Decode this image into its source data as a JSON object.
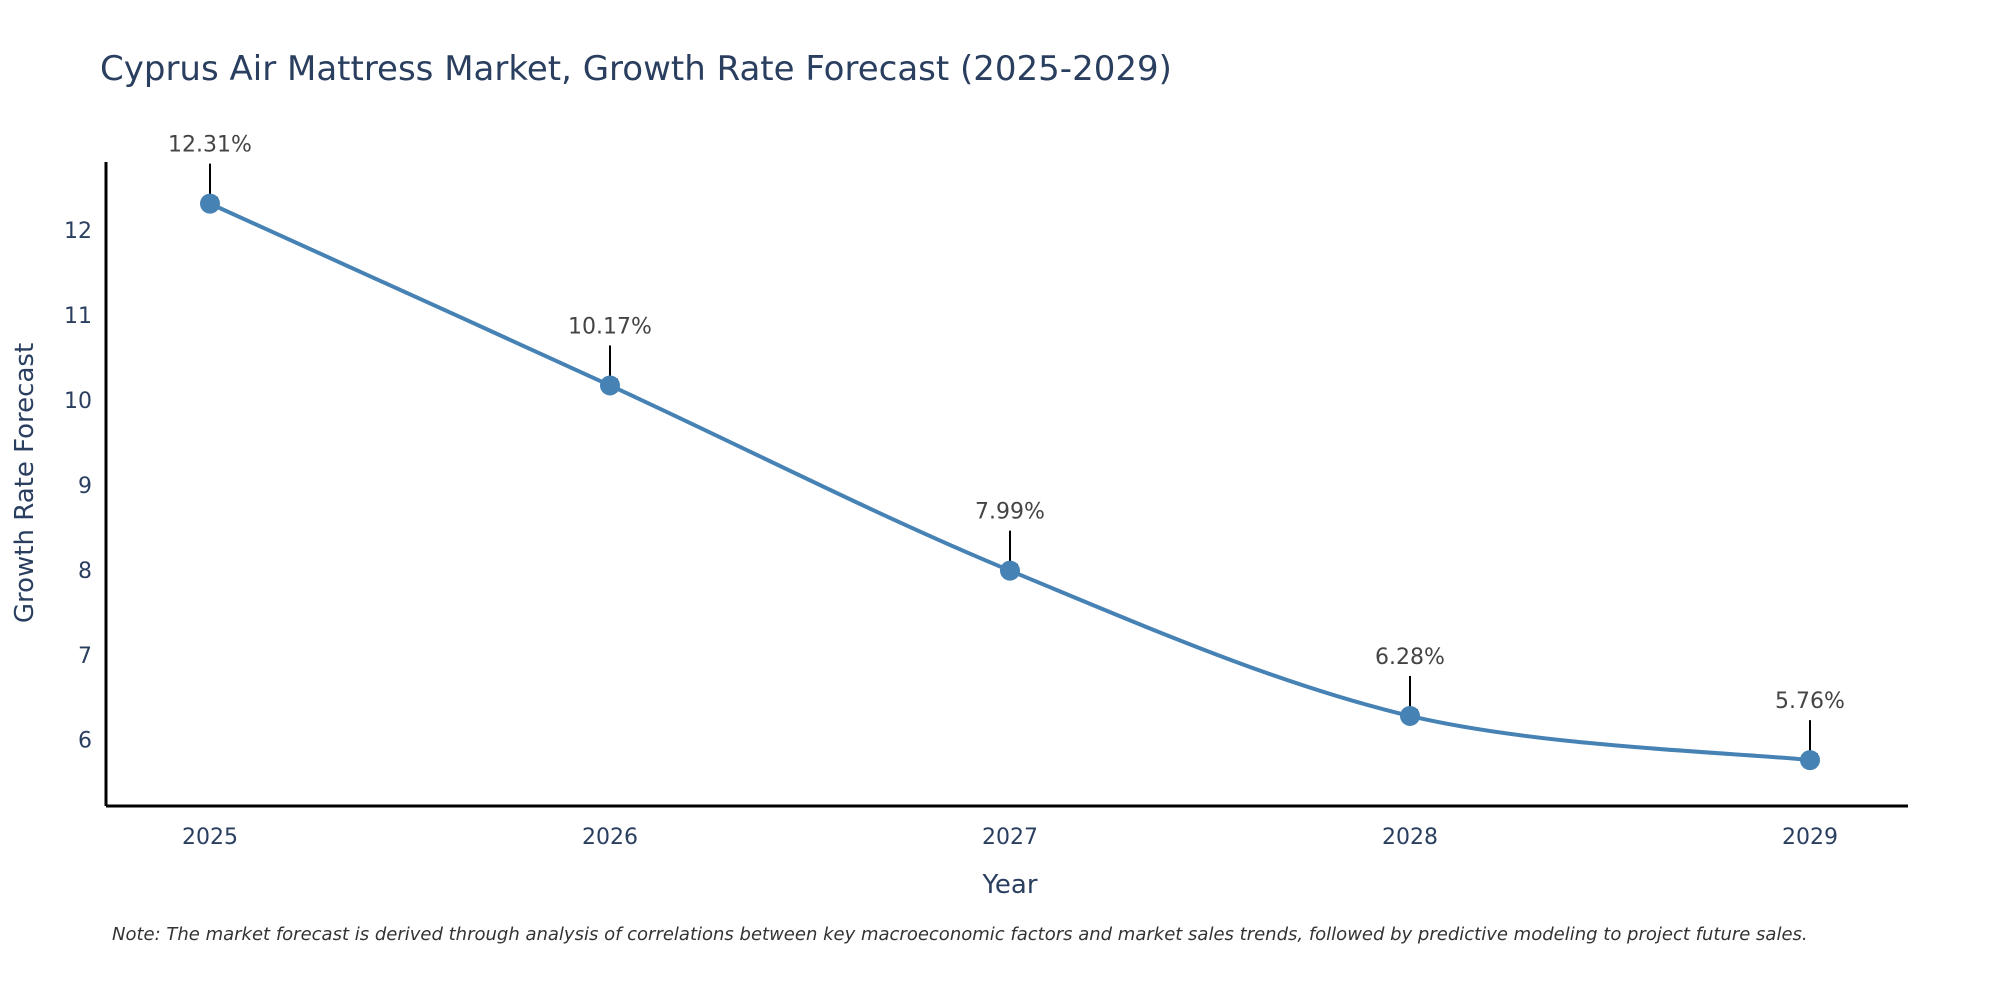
{
  "chart_data": {
    "type": "line",
    "title": "Cyprus Air Mattress Market, Growth Rate Forecast (2025-2029)",
    "xlabel": "Year",
    "ylabel": "Growth Rate Forecast",
    "categories": [
      "2025",
      "2026",
      "2027",
      "2028",
      "2029"
    ],
    "values": [
      12.31,
      10.17,
      7.99,
      6.28,
      5.76
    ],
    "data_labels": [
      "12.31%",
      "10.17%",
      "7.99%",
      "6.28%",
      "5.76%"
    ],
    "y_ticks": [
      6,
      7,
      8,
      9,
      10,
      11,
      12
    ],
    "y_tick_labels": [
      "6",
      "7",
      "8",
      "9",
      "10",
      "11",
      "12"
    ],
    "ylim": [
      5.22,
      12.8
    ],
    "grid": false,
    "line_color": "#4682b4",
    "marker_color": "#4682b4",
    "arrow_color": "#000000",
    "note": "Note: The market forecast is derived through analysis of correlations between key macroeconomic factors and market sales trends, followed by predictive modeling to project future sales."
  }
}
